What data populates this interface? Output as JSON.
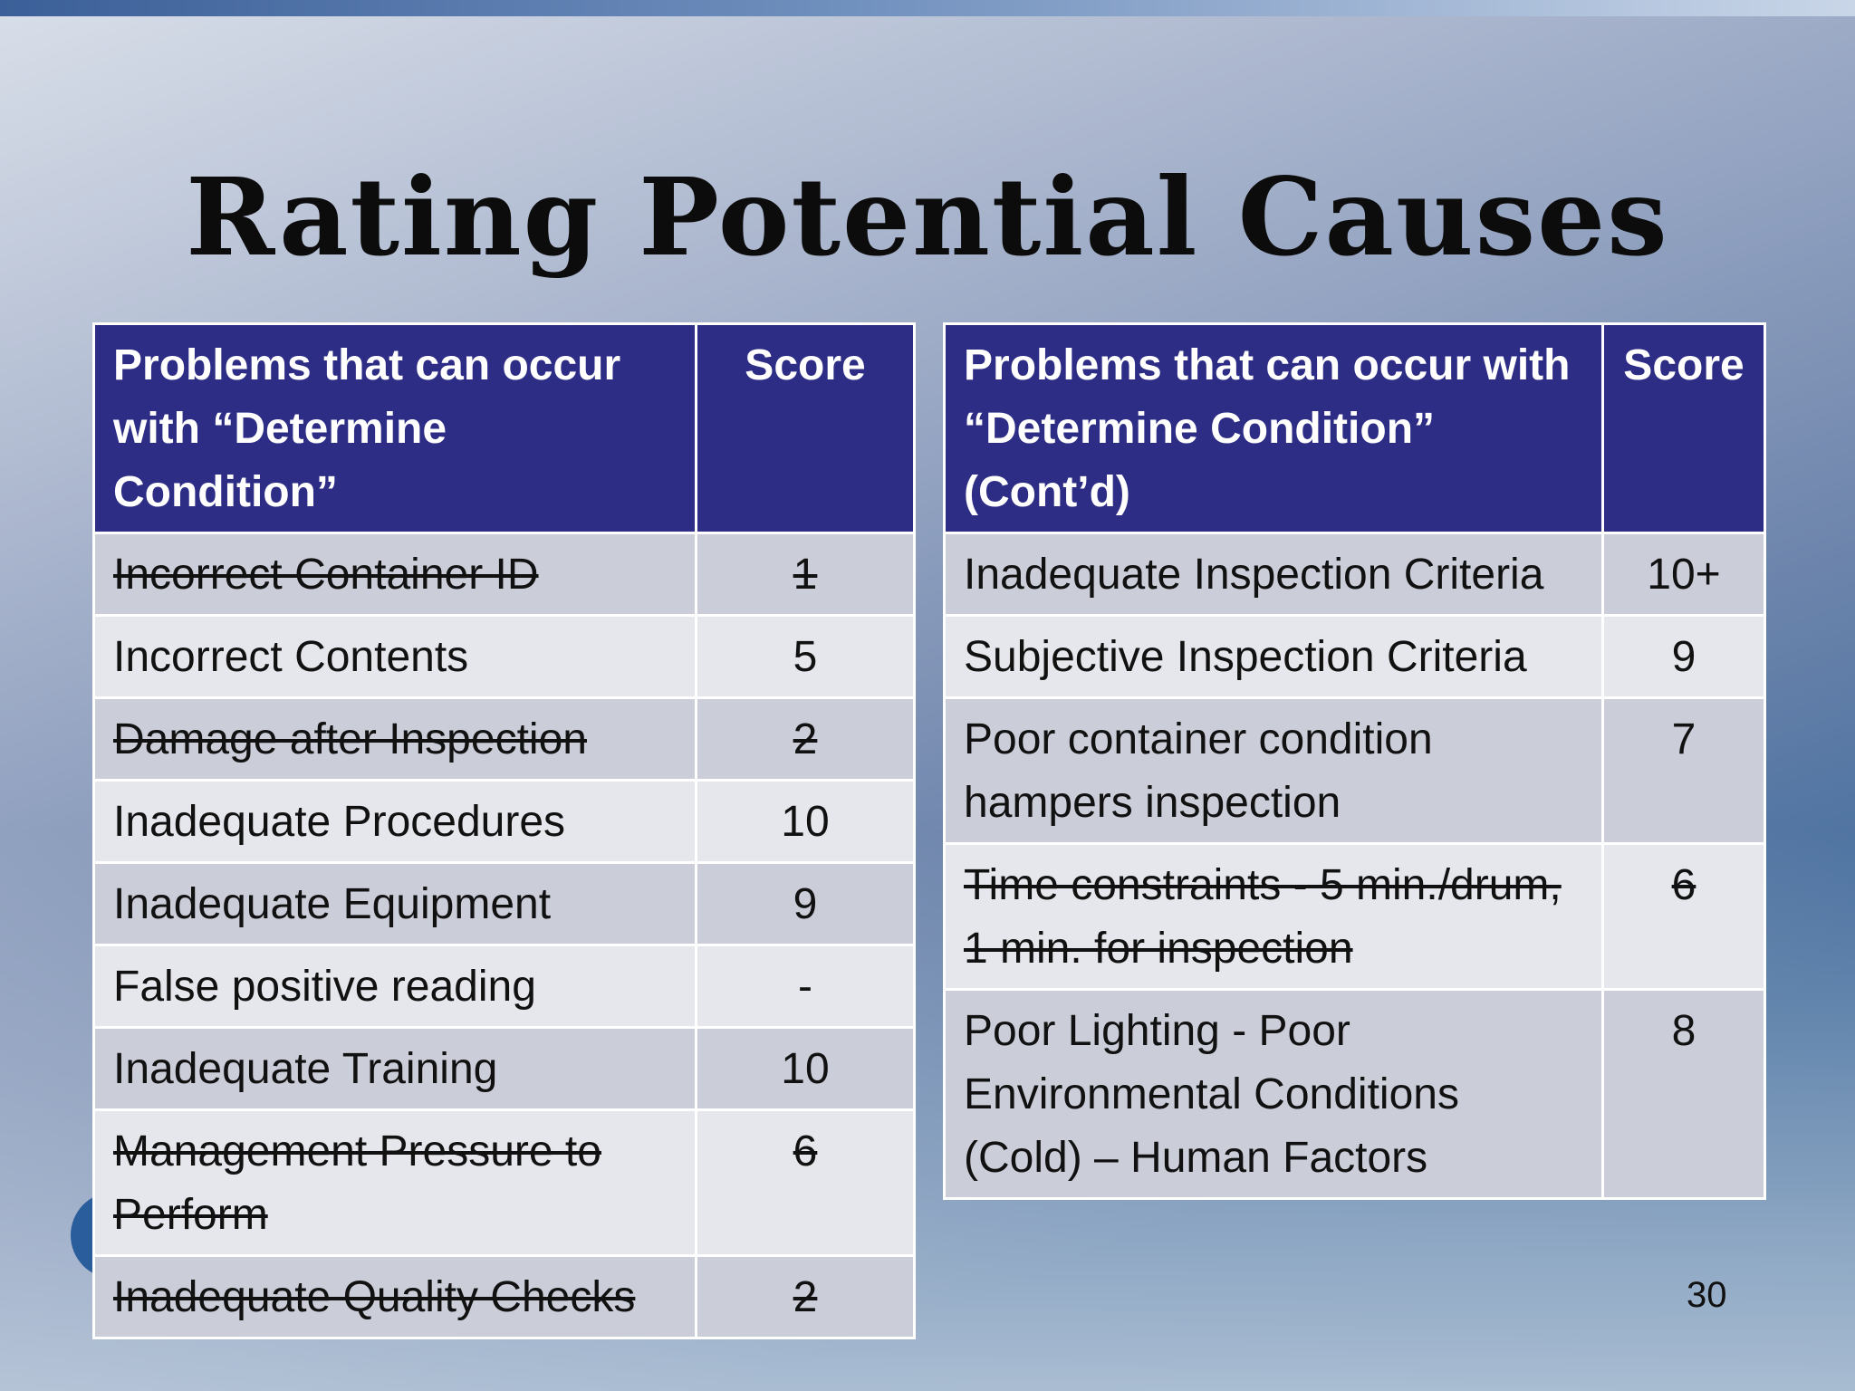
{
  "slide": {
    "title": "Rating Potential Causes",
    "page_number": "30"
  },
  "left_table": {
    "header_problem": "Problems that can occur with “Determine Condition”",
    "header_score": "Score",
    "rows": [
      {
        "problem": "Incorrect Container ID",
        "score": "1",
        "struck": true
      },
      {
        "problem": "Incorrect Contents",
        "score": "5",
        "struck": false
      },
      {
        "problem": "Damage after Inspection",
        "score": "2",
        "struck": true
      },
      {
        "problem": "Inadequate Procedures",
        "score": "10",
        "struck": false
      },
      {
        "problem": "Inadequate Equipment",
        "score": "9",
        "struck": false
      },
      {
        "problem": "False positive reading",
        "score": "-",
        "struck": false
      },
      {
        "problem": "Inadequate Training",
        "score": "10",
        "struck": false
      },
      {
        "problem": "Management Pressure to Perform",
        "score": "6",
        "struck": true
      },
      {
        "problem": "Inadequate Quality Checks",
        "score": "2",
        "struck": true
      }
    ]
  },
  "right_table": {
    "header_problem": "Problems that can occur with “Determine Condition” (Cont’d)",
    "header_score": "Score",
    "rows": [
      {
        "problem": "Inadequate Inspection Criteria",
        "score": "10+",
        "struck": false
      },
      {
        "problem": "Subjective Inspection Criteria",
        "score": "9",
        "struck": false
      },
      {
        "problem": "Poor container condition hampers inspection",
        "score": "7",
        "struck": false
      },
      {
        "problem": "Time constraints - 5 min./drum, 1 min. for inspection",
        "score": "6",
        "struck": true
      },
      {
        "problem": "Poor Lighting - Poor Environmental Conditions (Cold) – Human Factors",
        "score": "8",
        "struck": false
      }
    ]
  },
  "colors": {
    "header_bg": "#2e2d86",
    "row_dark": "#cbcdd9",
    "row_light": "#e6e7ec"
  }
}
